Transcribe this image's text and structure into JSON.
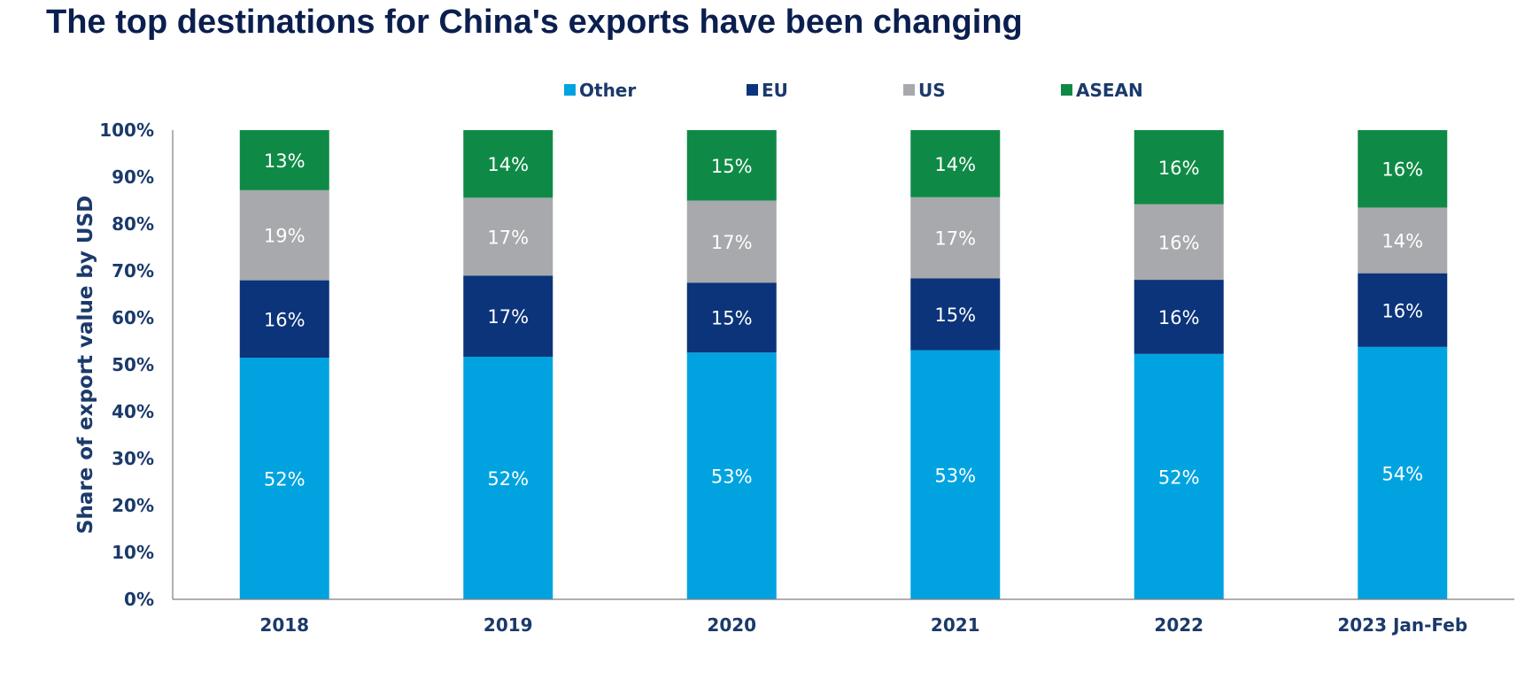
{
  "title": "The top destinations for China's exports have been changing",
  "chart_data": {
    "type": "bar",
    "stacked": true,
    "categories": [
      "2018",
      "2019",
      "2020",
      "2021",
      "2022",
      "2023 Jan-Feb"
    ],
    "series": [
      {
        "name": "Other",
        "color": "#00a3e0",
        "values": [
          51.5,
          51.7,
          52.6,
          53.1,
          52.3,
          53.8
        ],
        "labels": [
          "52%",
          "52%",
          "53%",
          "53%",
          "52%",
          "54%"
        ]
      },
      {
        "name": "EU",
        "color": "#0b347a",
        "values": [
          16.5,
          17.3,
          14.9,
          15.3,
          15.8,
          15.7
        ],
        "labels": [
          "16%",
          "17%",
          "15%",
          "15%",
          "16%",
          "16%"
        ]
      },
      {
        "name": "US",
        "color": "#a7a9ac",
        "values": [
          19.2,
          16.6,
          17.5,
          17.3,
          16.1,
          14.0
        ],
        "labels": [
          "19%",
          "17%",
          "17%",
          "17%",
          "16%",
          "14%"
        ]
      },
      {
        "name": "ASEAN",
        "color": "#0f8a46",
        "values": [
          12.8,
          14.4,
          15.0,
          14.3,
          15.8,
          16.5
        ],
        "labels": [
          "13%",
          "14%",
          "15%",
          "14%",
          "16%",
          "16%"
        ]
      }
    ],
    "ylabel": "Share of export value by USD",
    "xlabel": "",
    "ylim": [
      0,
      100
    ],
    "yticks": [
      "0%",
      "10%",
      "20%",
      "30%",
      "40%",
      "50%",
      "60%",
      "70%",
      "80%",
      "90%",
      "100%"
    ],
    "legend_position": "top",
    "grid": false
  }
}
